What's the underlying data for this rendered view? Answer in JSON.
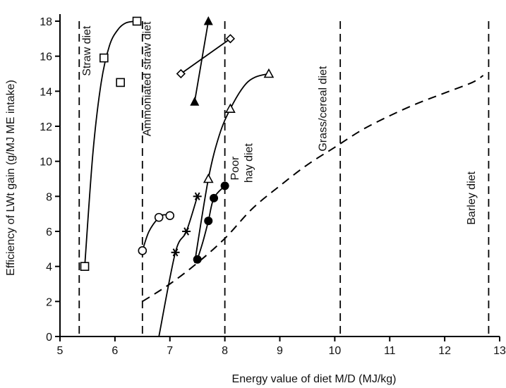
{
  "chart_data": {
    "type": "scatter",
    "title": "",
    "xlabel": "Energy value of diet M/D (MJ/kg)",
    "ylabel": "Efficiency of LWt gain (g/MJ ME intake)",
    "xlim": [
      5,
      13
    ],
    "ylim": [
      0,
      18
    ],
    "x_ticks": [
      5,
      6,
      7,
      8,
      9,
      10,
      11,
      12,
      13
    ],
    "y_ticks": [
      0,
      2,
      4,
      6,
      8,
      10,
      12,
      14,
      16,
      18
    ],
    "grid": false,
    "legend": "none",
    "diet_boundaries": [
      5.35,
      6.5,
      8.0,
      10.1,
      12.8
    ],
    "annotations": [
      {
        "text": "Straw diet",
        "x": 5.55,
        "y": 16.3,
        "rotate": -90
      },
      {
        "text": "Ammoniated straw diet",
        "x": 6.65,
        "y": 14.7,
        "rotate": -90
      },
      {
        "text": "Poor",
        "x": 8.25,
        "y": 9.6,
        "rotate": -90
      },
      {
        "text": "hay diet",
        "x": 8.5,
        "y": 9.9,
        "rotate": -90
      },
      {
        "text": "Grass/cereal diet",
        "x": 9.85,
        "y": 13.0,
        "rotate": -90
      },
      {
        "text": "Barley diet",
        "x": 12.55,
        "y": 7.9,
        "rotate": -90
      }
    ],
    "reference_curve": {
      "style": "dashed",
      "points": [
        [
          6.5,
          2.0
        ],
        [
          7.0,
          3.0
        ],
        [
          7.5,
          4.2
        ],
        [
          8.0,
          5.6
        ],
        [
          8.5,
          7.3
        ],
        [
          9.0,
          8.6
        ],
        [
          9.5,
          9.8
        ],
        [
          10.0,
          10.8
        ],
        [
          10.5,
          11.8
        ],
        [
          11.0,
          12.6
        ],
        [
          11.5,
          13.3
        ],
        [
          12.0,
          13.9
        ],
        [
          12.5,
          14.5
        ],
        [
          12.7,
          14.9
        ]
      ]
    },
    "series": [
      {
        "marker": "square",
        "points": [
          [
            5.45,
            4.0
          ],
          [
            5.8,
            15.9
          ],
          [
            6.1,
            14.5
          ],
          [
            6.4,
            18.0
          ]
        ],
        "curve": [
          [
            5.45,
            4.0
          ],
          [
            5.6,
            10.5
          ],
          [
            5.75,
            14.5
          ],
          [
            5.9,
            16.6
          ],
          [
            6.05,
            17.5
          ],
          [
            6.2,
            17.9
          ],
          [
            6.4,
            18.0
          ]
        ]
      },
      {
        "marker": "circle-open",
        "points": [
          [
            6.5,
            4.9
          ],
          [
            6.8,
            6.8
          ],
          [
            7.0,
            6.9
          ]
        ],
        "curve": [
          [
            6.5,
            4.9
          ],
          [
            6.62,
            6.0
          ],
          [
            6.8,
            6.8
          ],
          [
            6.9,
            6.95
          ],
          [
            7.0,
            6.9
          ]
        ]
      },
      {
        "marker": "asterisk",
        "points": [
          [
            7.1,
            4.8
          ],
          [
            7.3,
            6.0
          ],
          [
            7.5,
            8.0
          ]
        ],
        "curve": [
          [
            6.8,
            0.0
          ],
          [
            7.1,
            4.8
          ],
          [
            7.3,
            6.0
          ],
          [
            7.5,
            8.0
          ]
        ]
      },
      {
        "marker": "circle-filled",
        "points": [
          [
            7.5,
            4.4
          ],
          [
            7.7,
            6.6
          ],
          [
            7.8,
            7.9
          ],
          [
            8.0,
            8.6
          ]
        ],
        "curve": [
          [
            7.5,
            4.4
          ],
          [
            7.6,
            5.4
          ],
          [
            7.7,
            6.6
          ],
          [
            7.8,
            7.9
          ],
          [
            8.0,
            8.6
          ]
        ]
      },
      {
        "marker": "triangle-open",
        "points": [
          [
            7.7,
            9.0
          ],
          [
            8.1,
            13.0
          ],
          [
            8.8,
            15.0
          ]
        ],
        "curve": [
          [
            7.45,
            4.2
          ],
          [
            7.7,
            9.0
          ],
          [
            7.9,
            11.5
          ],
          [
            8.1,
            13.0
          ],
          [
            8.35,
            14.3
          ],
          [
            8.55,
            14.8
          ],
          [
            8.8,
            15.0
          ]
        ]
      },
      {
        "marker": "diamond",
        "points": [
          [
            7.2,
            15.0
          ],
          [
            8.1,
            17.0
          ]
        ],
        "curve": [
          [
            7.2,
            15.0
          ],
          [
            8.1,
            17.0
          ]
        ]
      },
      {
        "marker": "triangle-filled",
        "points": [
          [
            7.45,
            13.4
          ],
          [
            7.7,
            18.0
          ]
        ],
        "curve": [
          [
            7.45,
            13.4
          ],
          [
            7.7,
            18.0
          ]
        ]
      }
    ]
  }
}
